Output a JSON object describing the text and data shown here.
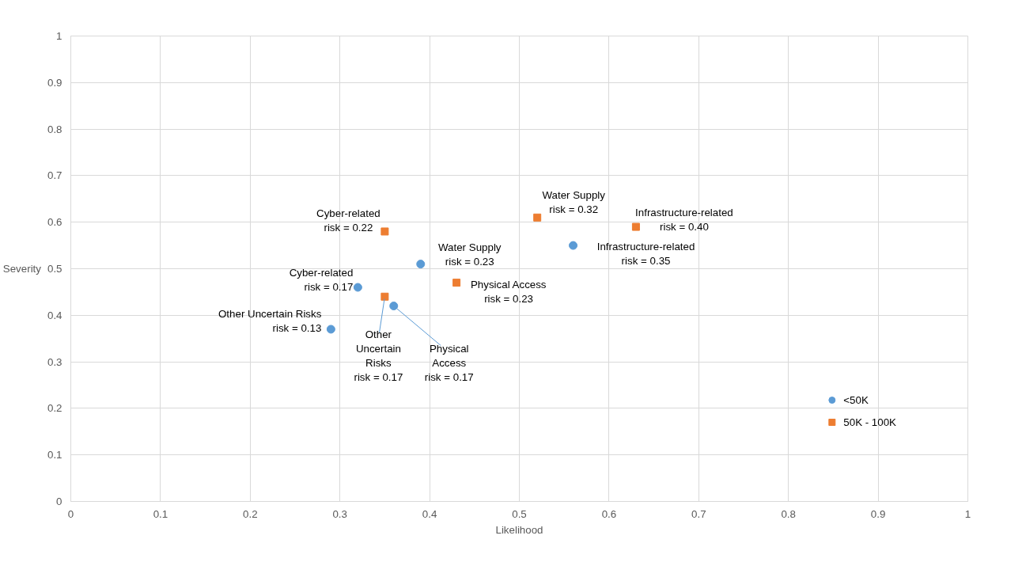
{
  "chart_data": {
    "type": "scatter",
    "xlabel": "Likelihood",
    "ylabel": "Severity",
    "xlim": [
      0,
      1
    ],
    "ylim": [
      0,
      1
    ],
    "xticks": [
      0,
      0.1,
      0.2,
      0.3,
      0.4,
      0.5,
      0.6,
      0.7,
      0.8,
      0.9,
      1
    ],
    "yticks": [
      0,
      0.1,
      0.2,
      0.3,
      0.4,
      0.5,
      0.6,
      0.7,
      0.8,
      0.9,
      1
    ],
    "grid": true,
    "legend": "bottom right",
    "series": [
      {
        "name": "<50K",
        "color": "#5b9bd5",
        "marker": "circle",
        "x": [
          0.29,
          0.32,
          0.36,
          0.39,
          0.56
        ],
        "values": [
          0.37,
          0.46,
          0.42,
          0.51,
          0.55
        ]
      },
      {
        "name": "50K - 100K",
        "color": "#ed7d31",
        "marker": "square",
        "x": [
          0.35,
          0.35,
          0.43,
          0.52,
          0.63
        ],
        "values": [
          0.58,
          0.44,
          0.47,
          0.61,
          0.59
        ]
      }
    ],
    "annotations": [
      {
        "text": "Other Uncertain Risks\nrisk = 0.13",
        "x": 0.29,
        "y": 0.37
      },
      {
        "text": "Cyber-related\nrisk = 0.17",
        "x": 0.32,
        "y": 0.46
      },
      {
        "text": "Physical\nAccess\nrisk = 0.17",
        "x": 0.36,
        "y": 0.42
      },
      {
        "text": "Water Supply\nrisk = 0.23",
        "x": 0.39,
        "y": 0.51
      },
      {
        "text": "Infrastructure-related\nrisk = 0.35",
        "x": 0.56,
        "y": 0.55
      },
      {
        "text": "Cyber-related\nrisk = 0.22",
        "x": 0.35,
        "y": 0.58
      },
      {
        "text": "Other\nUncertain\nRisks\nrisk = 0.17",
        "x": 0.35,
        "y": 0.44
      },
      {
        "text": "Physical Access\nrisk = 0.23",
        "x": 0.43,
        "y": 0.47
      },
      {
        "text": "Water Supply\nrisk = 0.32",
        "x": 0.52,
        "y": 0.61
      },
      {
        "text": "Infrastructure-related\nrisk = 0.40",
        "x": 0.63,
        "y": 0.59
      }
    ]
  }
}
